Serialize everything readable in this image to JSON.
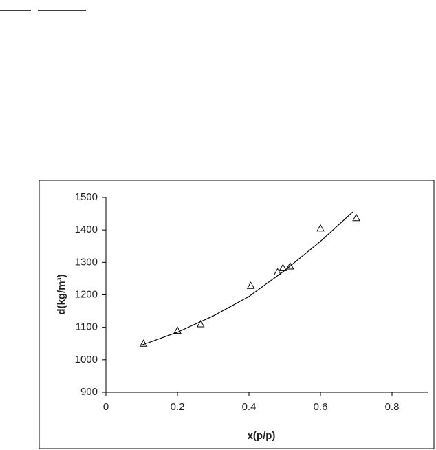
{
  "chart_data": {
    "type": "scatter",
    "x_label": "x(p/p)",
    "y_label": "d(kg/m³)",
    "xlim": [
      0,
      0.9
    ],
    "xticks": [
      0,
      0.2,
      0.4,
      0.6,
      0.8
    ],
    "ylim": [
      900,
      1500
    ],
    "yticks": [
      900,
      1000,
      1100,
      1200,
      1300,
      1400,
      1500
    ],
    "grid": false,
    "series": [
      {
        "mode": "markers",
        "color": "#000000",
        "x": [
          0.105,
          0.2,
          0.265,
          0.405,
          0.48,
          0.495,
          0.515,
          0.6,
          0.7
        ],
        "values": [
          1050,
          1090,
          1110,
          1228,
          1270,
          1283,
          1288,
          1405,
          1437
        ]
      },
      {
        "mode": "line",
        "color": "#000000",
        "x": [
          0.1,
          0.2,
          0.3,
          0.4,
          0.5,
          0.6,
          0.69
        ],
        "values": [
          1045,
          1085,
          1135,
          1195,
          1275,
          1365,
          1455
        ]
      }
    ]
  }
}
